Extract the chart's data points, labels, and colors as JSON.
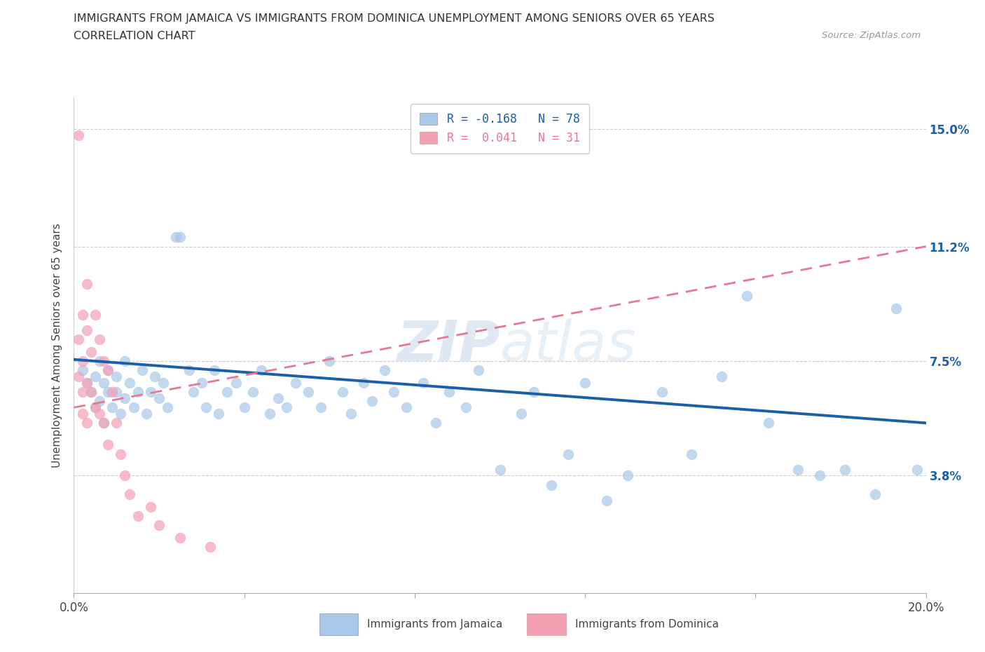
{
  "title_line1": "IMMIGRANTS FROM JAMAICA VS IMMIGRANTS FROM DOMINICA UNEMPLOYMENT AMONG SENIORS OVER 65 YEARS",
  "title_line2": "CORRELATION CHART",
  "source": "Source: ZipAtlas.com",
  "ylabel": "Unemployment Among Seniors over 65 years",
  "xlim": [
    0.0,
    0.2
  ],
  "ylim": [
    0.0,
    0.16
  ],
  "ytick_positions": [
    0.0,
    0.038,
    0.075,
    0.112,
    0.15
  ],
  "ytick_labels": [
    "",
    "3.8%",
    "7.5%",
    "11.2%",
    "15.0%"
  ],
  "legend1_label": "R = -0.168   N = 78",
  "legend2_label": "R =  0.041   N = 31",
  "jamaica_color": "#a8c8e8",
  "dominica_color": "#f4a0b5",
  "jamaica_line_color": "#1a5fa8",
  "dominica_line_color": "#e87890",
  "R_jamaica": -0.168,
  "N_jamaica": 78,
  "R_dominica": 0.041,
  "N_dominica": 31,
  "jamaica_x": [
    0.002,
    0.003,
    0.004,
    0.005,
    0.005,
    0.006,
    0.006,
    0.007,
    0.007,
    0.008,
    0.008,
    0.009,
    0.01,
    0.01,
    0.011,
    0.012,
    0.012,
    0.013,
    0.014,
    0.015,
    0.016,
    0.017,
    0.018,
    0.019,
    0.02,
    0.021,
    0.022,
    0.024,
    0.025,
    0.027,
    0.028,
    0.03,
    0.031,
    0.033,
    0.034,
    0.036,
    0.038,
    0.04,
    0.042,
    0.044,
    0.046,
    0.048,
    0.05,
    0.052,
    0.055,
    0.058,
    0.06,
    0.063,
    0.065,
    0.068,
    0.07,
    0.073,
    0.075,
    0.078,
    0.082,
    0.085,
    0.088,
    0.092,
    0.095,
    0.1,
    0.105,
    0.108,
    0.112,
    0.116,
    0.12,
    0.125,
    0.13,
    0.138,
    0.145,
    0.152,
    0.158,
    0.163,
    0.17,
    0.175,
    0.181,
    0.188,
    0.193,
    0.198
  ],
  "jamaica_y": [
    0.072,
    0.068,
    0.065,
    0.07,
    0.06,
    0.075,
    0.062,
    0.068,
    0.055,
    0.065,
    0.072,
    0.06,
    0.065,
    0.07,
    0.058,
    0.063,
    0.075,
    0.068,
    0.06,
    0.065,
    0.072,
    0.058,
    0.065,
    0.07,
    0.063,
    0.068,
    0.06,
    0.115,
    0.115,
    0.072,
    0.065,
    0.068,
    0.06,
    0.072,
    0.058,
    0.065,
    0.068,
    0.06,
    0.065,
    0.072,
    0.058,
    0.063,
    0.06,
    0.068,
    0.065,
    0.06,
    0.075,
    0.065,
    0.058,
    0.068,
    0.062,
    0.072,
    0.065,
    0.06,
    0.068,
    0.055,
    0.065,
    0.06,
    0.072,
    0.04,
    0.058,
    0.065,
    0.035,
    0.045,
    0.068,
    0.03,
    0.038,
    0.065,
    0.045,
    0.07,
    0.096,
    0.055,
    0.04,
    0.038,
    0.04,
    0.032,
    0.092,
    0.04
  ],
  "dominica_x": [
    0.001,
    0.001,
    0.001,
    0.002,
    0.002,
    0.002,
    0.002,
    0.003,
    0.003,
    0.003,
    0.003,
    0.004,
    0.004,
    0.005,
    0.005,
    0.006,
    0.006,
    0.007,
    0.007,
    0.008,
    0.008,
    0.009,
    0.01,
    0.011,
    0.012,
    0.013,
    0.015,
    0.018,
    0.02,
    0.025,
    0.032
  ],
  "dominica_y": [
    0.148,
    0.082,
    0.07,
    0.09,
    0.075,
    0.065,
    0.058,
    0.1,
    0.085,
    0.068,
    0.055,
    0.078,
    0.065,
    0.09,
    0.06,
    0.082,
    0.058,
    0.075,
    0.055,
    0.072,
    0.048,
    0.065,
    0.055,
    0.045,
    0.038,
    0.032,
    0.025,
    0.028,
    0.022,
    0.018,
    0.015
  ],
  "jamaica_trendline_x": [
    0.0,
    0.2
  ],
  "jamaica_trendline_y": [
    0.0755,
    0.055
  ],
  "dominica_trendline_x": [
    0.0,
    0.2
  ],
  "dominica_trendline_y": [
    0.06,
    0.112
  ]
}
